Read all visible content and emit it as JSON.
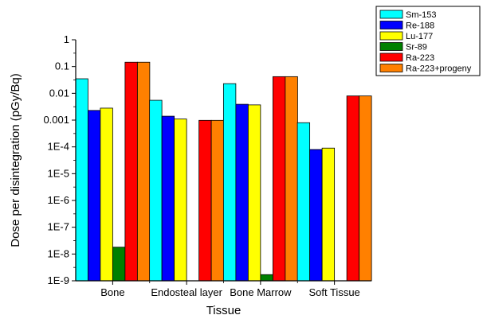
{
  "chart_data": {
    "type": "bar",
    "xlabel": "Tissue",
    "ylabel": "Dose per disintegration (pGy/Bq)",
    "yscale": "log",
    "ylim": [
      1e-09,
      1
    ],
    "yticks": [
      1,
      0.1,
      0.01,
      0.001,
      0.0001,
      1e-05,
      1e-06,
      1e-07,
      1e-08,
      1e-09
    ],
    "ytick_labels": [
      "1",
      "0.1",
      "0.01",
      "0.001",
      "1E-4",
      "1E-5",
      "1E-6",
      "1E-7",
      "1E-8",
      "1E-9"
    ],
    "categories": [
      "Bone",
      "Endosteal layer",
      "Bone Marrow",
      "Soft Tissue"
    ],
    "series": [
      {
        "name": "Sm-153",
        "color": "#00ffff",
        "values": [
          0.035,
          0.0055,
          0.023,
          0.0008
        ]
      },
      {
        "name": "Re-188",
        "color": "#0000ff",
        "values": [
          0.0023,
          0.0014,
          0.0039,
          8e-05
        ]
      },
      {
        "name": "Lu-177",
        "color": "#ffff00",
        "values": [
          0.0028,
          0.0011,
          0.0037,
          9e-05
        ]
      },
      {
        "name": "Sr-89",
        "color": "#008000",
        "values": [
          1.8e-08,
          null,
          1.7e-09,
          null
        ]
      },
      {
        "name": "Ra-223",
        "color": "#ff0000",
        "values": [
          0.145,
          0.00098,
          0.042,
          0.008
        ]
      },
      {
        "name": "Ra-223+progeny",
        "color": "#ff8000",
        "values": [
          0.145,
          0.00098,
          0.042,
          0.008
        ]
      }
    ],
    "legend_position": "top-right",
    "grid": false
  }
}
